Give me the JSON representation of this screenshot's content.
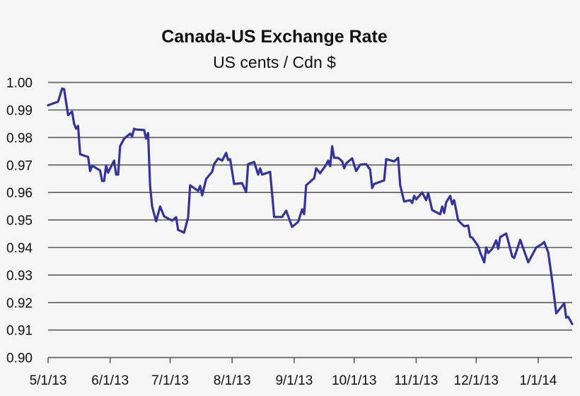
{
  "chart_data": {
    "type": "line",
    "title": "Canada-US Exchange Rate",
    "subtitle": "US cents / Cdn $",
    "xlabel": "",
    "ylabel": "",
    "ylim": [
      0.9,
      1.0
    ],
    "xlim": [
      "2013-05-01",
      "2014-01-18"
    ],
    "grid": "horizontal",
    "line_color": "#33339a",
    "y_ticks": [
      "0.90",
      "0.91",
      "0.92",
      "0.93",
      "0.94",
      "0.95",
      "0.96",
      "0.97",
      "0.98",
      "0.99",
      "1.00"
    ],
    "x_ticks": [
      {
        "date": "2013-05-01",
        "label": "5/1/13"
      },
      {
        "date": "2013-06-01",
        "label": "6/1/13"
      },
      {
        "date": "2013-07-01",
        "label": "7/1/13"
      },
      {
        "date": "2013-08-01",
        "label": "8/1/13"
      },
      {
        "date": "2013-09-01",
        "label": "9/1/13"
      },
      {
        "date": "2013-10-01",
        "label": "10/1/13"
      },
      {
        "date": "2013-11-01",
        "label": "11/1/13"
      },
      {
        "date": "2013-12-01",
        "label": "12/1/13"
      },
      {
        "date": "2014-01-01",
        "label": "1/1/14"
      }
    ],
    "series": [
      {
        "x": [
          "2013-05-01",
          "2013-05-06",
          "2013-05-08",
          "2013-05-09",
          "2013-05-11",
          "2013-05-13",
          "2013-05-14",
          "2013-05-15",
          "2013-05-16",
          "2013-05-17",
          "2013-05-21",
          "2013-05-22",
          "2013-05-23",
          "2013-05-27",
          "2013-05-28",
          "2013-05-29",
          "2013-05-30",
          "2013-05-31",
          "2013-06-03",
          "2013-06-04",
          "2013-06-05",
          "2013-06-06",
          "2013-06-08",
          "2013-06-11",
          "2013-06-12",
          "2013-06-13",
          "2013-06-14",
          "2013-06-18",
          "2013-06-19",
          "2013-06-20",
          "2013-06-21",
          "2013-06-22",
          "2013-06-24",
          "2013-06-26",
          "2013-06-28",
          "2013-07-02",
          "2013-07-04",
          "2013-07-05",
          "2013-07-08",
          "2013-07-10",
          "2013-07-11",
          "2013-07-15",
          "2013-07-16",
          "2013-07-17",
          "2013-07-19",
          "2013-07-22",
          "2013-07-23",
          "2013-07-25",
          "2013-07-27",
          "2013-07-29",
          "2013-07-30",
          "2013-07-31",
          "2013-08-02",
          "2013-08-06",
          "2013-08-08",
          "2013-08-09",
          "2013-08-12",
          "2013-08-14",
          "2013-08-15",
          "2013-08-16",
          "2013-08-20",
          "2013-08-22",
          "2013-08-26",
          "2013-08-28",
          "2013-08-31",
          "2013-09-03",
          "2013-09-05",
          "2013-09-06",
          "2013-09-07",
          "2013-09-11",
          "2013-09-12",
          "2013-09-14",
          "2013-09-17",
          "2013-09-18",
          "2013-09-19",
          "2013-09-20",
          "2013-09-21",
          "2013-09-23",
          "2013-09-25",
          "2013-09-26",
          "2013-09-27",
          "2013-09-30",
          "2013-10-02",
          "2013-10-04",
          "2013-10-07",
          "2013-10-09",
          "2013-10-10",
          "2013-10-11",
          "2013-10-16",
          "2013-10-17",
          "2013-10-21",
          "2013-10-23",
          "2013-10-24",
          "2013-10-26",
          "2013-10-29",
          "2013-10-30",
          "2013-10-31",
          "2013-11-01",
          "2013-11-04",
          "2013-11-06",
          "2013-11-07",
          "2013-11-09",
          "2013-11-13",
          "2013-11-14",
          "2013-11-15",
          "2013-11-16",
          "2013-11-18",
          "2013-11-19",
          "2013-11-20",
          "2013-11-22",
          "2013-11-25",
          "2013-11-27",
          "2013-11-28",
          "2013-11-29",
          "2013-12-02",
          "2013-12-03",
          "2013-12-05",
          "2013-12-06",
          "2013-12-07",
          "2013-12-09",
          "2013-12-11",
          "2013-12-12",
          "2013-12-13",
          "2013-12-16",
          "2013-12-19",
          "2013-12-20",
          "2013-12-23",
          "2013-12-27",
          "2013-12-31",
          "2014-01-03",
          "2014-01-04",
          "2014-01-06",
          "2014-01-08",
          "2014-01-10",
          "2014-01-14",
          "2014-01-15",
          "2014-01-16",
          "2014-01-18"
        ],
        "y": [
          0.9917,
          0.993,
          0.9978,
          0.9976,
          0.9881,
          0.9894,
          0.985,
          0.9832,
          0.9842,
          0.9739,
          0.9729,
          0.9678,
          0.9698,
          0.968,
          0.9642,
          0.9642,
          0.9698,
          0.9672,
          0.9716,
          0.9665,
          0.9665,
          0.9768,
          0.9796,
          0.9814,
          0.9804,
          0.9832,
          0.9829,
          0.9827,
          0.9796,
          0.9816,
          0.9624,
          0.9549,
          0.9495,
          0.9549,
          0.9513,
          0.9498,
          0.951,
          0.9464,
          0.9454,
          0.951,
          0.9626,
          0.9606,
          0.9624,
          0.959,
          0.9649,
          0.9675,
          0.9703,
          0.9724,
          0.9716,
          0.9744,
          0.9718,
          0.9721,
          0.9631,
          0.9634,
          0.9601,
          0.9703,
          0.9711,
          0.9665,
          0.9688,
          0.9665,
          0.9675,
          0.9511,
          0.9511,
          0.9534,
          0.9475,
          0.9493,
          0.9539,
          0.9521,
          0.9626,
          0.9652,
          0.9688,
          0.967,
          0.9701,
          0.9716,
          0.9696,
          0.9768,
          0.9726,
          0.9726,
          0.9713,
          0.9688,
          0.9706,
          0.9724,
          0.9678,
          0.9701,
          0.9703,
          0.9683,
          0.9616,
          0.9631,
          0.9644,
          0.9721,
          0.9713,
          0.9726,
          0.9626,
          0.9567,
          0.9572,
          0.9562,
          0.9588,
          0.9575,
          0.96,
          0.9572,
          0.9598,
          0.9536,
          0.9521,
          0.9549,
          0.9526,
          0.9564,
          0.9588,
          0.9557,
          0.9572,
          0.9498,
          0.9477,
          0.948,
          0.9438,
          0.9436,
          0.9405,
          0.9382,
          0.9346,
          0.94,
          0.938,
          0.9395,
          0.9426,
          0.9395,
          0.9438,
          0.9451,
          0.9367,
          0.9362,
          0.9428,
          0.9346,
          0.94,
          0.9413,
          0.942,
          0.9382,
          0.9279,
          0.9161,
          0.9197,
          0.9145,
          0.9148,
          0.9122
        ]
      }
    ]
  }
}
